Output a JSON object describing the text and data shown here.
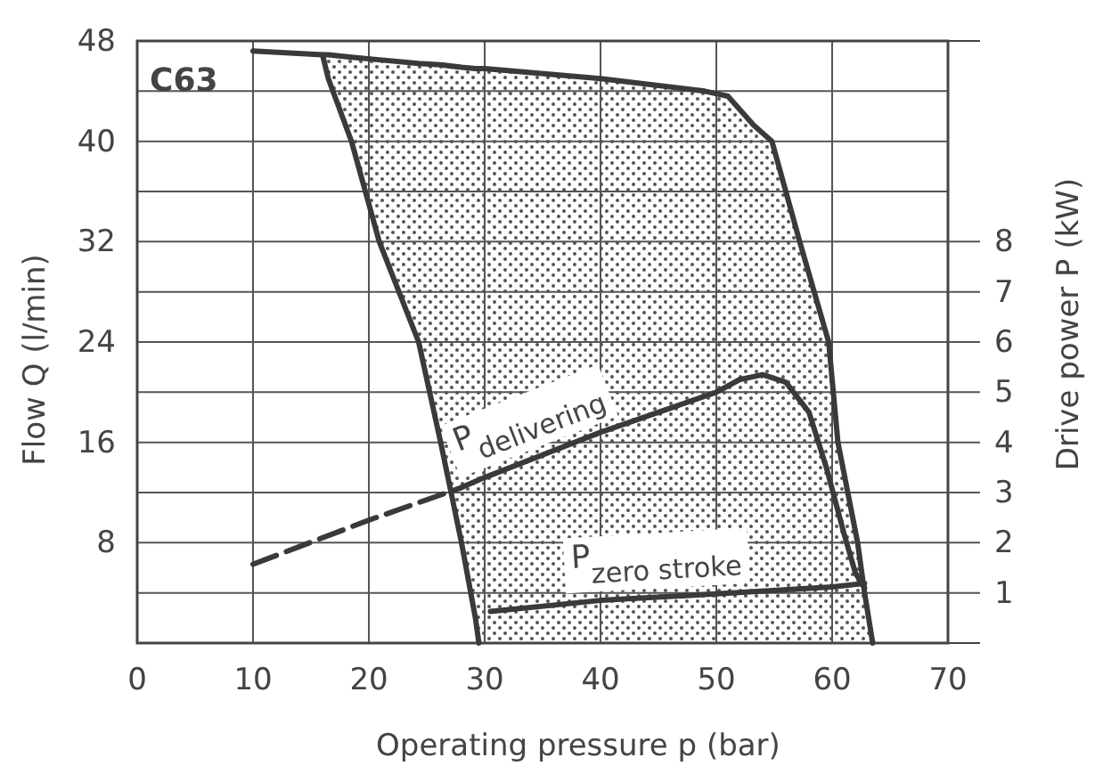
{
  "chart_data": {
    "type": "line",
    "xlabel": "Operating pressure p (bar)",
    "ylabel": "Flow Q (l/min)",
    "y2label": "Drive power P (kW)",
    "annotations": [
      "C63"
    ],
    "xlim": [
      0,
      70
    ],
    "xticks": [
      0,
      10,
      20,
      30,
      40,
      50,
      60,
      70
    ],
    "ylim": [
      0,
      48
    ],
    "yticks": [
      {
        "value": 4,
        "label": null
      },
      8,
      {
        "value": 12,
        "label": null
      },
      16,
      {
        "value": 20,
        "label": null
      },
      24,
      {
        "value": 28,
        "label": null
      },
      32,
      {
        "value": 36,
        "label": null
      },
      40,
      {
        "value": 44,
        "label": null
      },
      48
    ],
    "y2lim": [
      0,
      12
    ],
    "y2ticks": [
      1,
      2,
      3,
      4,
      5,
      6,
      7,
      8
    ],
    "grid": true,
    "legend": false,
    "marker": "none",
    "series": [
      {
        "color": "#3a3a3a",
        "x": [
          10,
          16,
          16.5,
          18.5,
          20.9,
          24.3,
          26.2,
          28,
          29.2,
          29.5,
          30,
          40,
          49,
          51,
          53.2,
          54.8,
          57.2,
          59.7,
          60.5,
          62.2,
          62.8,
          63.5
        ],
        "values": [
          47.2,
          46.9,
          46.9,
          46.7,
          46.5,
          46.2,
          46.1,
          45.9,
          45.8,
          45.8,
          45.8,
          45,
          44,
          43.6,
          41.3,
          40,
          32,
          24,
          16,
          8,
          4,
          0
        ],
        "lower": [
          null,
          46.9,
          45,
          40,
          32,
          24,
          16,
          8,
          2,
          0,
          0,
          0,
          0,
          0,
          0,
          0,
          0,
          0,
          0,
          0,
          0,
          0
        ],
        "upper": [
          null,
          46.9,
          46.9,
          46.7,
          46.5,
          46.2,
          46.1,
          45.9,
          45.8,
          45.8,
          45.8,
          45,
          44,
          43.6,
          41.3,
          40,
          32,
          24,
          16,
          8,
          4,
          0
        ]
      },
      {
        "color": "#3a3a3a",
        "x": [
          16,
          16.5,
          18.5,
          20.9,
          24.3,
          26.2,
          28,
          29.2,
          29.5
        ],
        "values": [
          46.9,
          45,
          40,
          32,
          24,
          16,
          8,
          2,
          0
        ]
      },
      {
        "color": "#3a3a3a",
        "axis": "y2",
        "line_style": "dashed",
        "x": [
          10,
          20,
          28
        ],
        "values": [
          1.57,
          2.45,
          3.1
        ]
      },
      {
        "name": "P$_{delivering}$",
        "color": "#3a3a3a",
        "axis": "y2",
        "x": [
          28,
          30,
          40,
          50,
          52,
          54,
          56,
          58,
          59.5,
          61,
          62,
          62.8
        ],
        "values": [
          3.1,
          3.3,
          4.2,
          5.0,
          5.25,
          5.35,
          5.2,
          4.6,
          3.5,
          2.2,
          1.4,
          1.1
        ]
      },
      {
        "name": "P$_{zero stroke}$",
        "color": "#3a3a3a",
        "axis": "y2",
        "x": [
          30.5,
          40,
          50,
          60,
          62.8
        ],
        "values": [
          0.63,
          0.85,
          0.98,
          1.12,
          1.19
        ]
      }
    ]
  }
}
